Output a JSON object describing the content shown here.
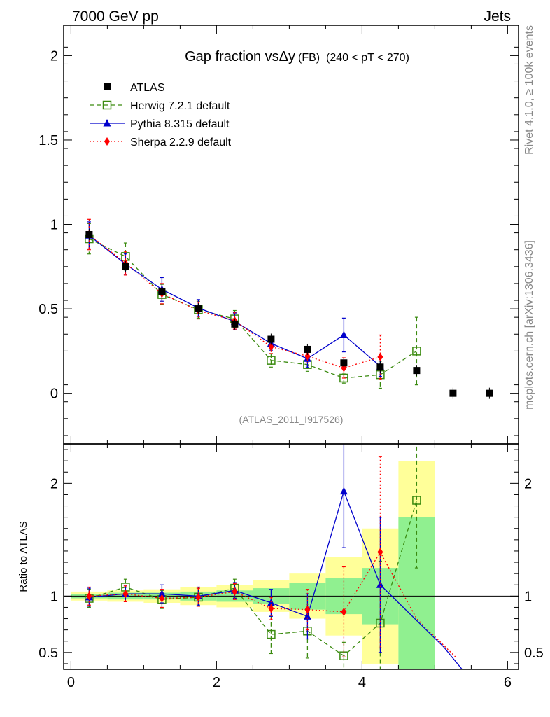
{
  "header": {
    "left": "7000 GeV pp",
    "right": "Jets"
  },
  "side_labels": {
    "top": "Rivet 4.1.0, ≥ 100k events",
    "bottom": "mcplots.cern.ch [arXiv:1306.3436]"
  },
  "watermark": "(ATLAS_2011_I917526)",
  "colors": {
    "atlas": "#000000",
    "herwig": "#3a8a0f",
    "pythia": "#0000cc",
    "sherpa": "#ff0000",
    "band_inner": "#90f090",
    "band_outer": "#ffff99"
  },
  "chart_data": [
    {
      "type": "scatter",
      "title_main": "Gap fraction vsΔy",
      "title_fb": "(FB)",
      "title_range": "(240 < pT < 270)",
      "xlim": [
        -0.1,
        6.15
      ],
      "ylim": [
        -0.3,
        2.18
      ],
      "yticks": [
        0,
        0.5,
        1,
        1.5,
        2
      ],
      "ytick_labels": [
        "0",
        "0.5",
        "1",
        "1.5",
        "2"
      ],
      "legend": [
        "ATLAS",
        "Herwig 7.2.1 default",
        "Pythia 8.315 default",
        "Sherpa 2.2.9 default"
      ],
      "x": [
        0.25,
        0.75,
        1.25,
        1.75,
        2.25,
        2.75,
        3.25,
        3.75,
        4.25,
        4.75,
        5.25,
        5.75
      ],
      "series": [
        {
          "name": "ATLAS",
          "values": [
            0.94,
            0.75,
            0.6,
            0.5,
            0.41,
            0.32,
            0.26,
            0.18,
            0.155,
            0.135,
            0.0,
            0.0
          ]
        },
        {
          "name": "Herwig 7.2.1 default",
          "values": [
            0.915,
            0.81,
            0.585,
            0.495,
            0.44,
            0.195,
            0.17,
            0.09,
            0.11,
            0.25
          ],
          "err": [
            0.09,
            0.08,
            0.06,
            0.05,
            0.05,
            0.04,
            0.04,
            0.03,
            0.08,
            0.2
          ]
        },
        {
          "name": "Pythia 8.315 default",
          "values": [
            0.935,
            0.765,
            0.615,
            0.505,
            0.425,
            0.295,
            0.205,
            0.345,
            0.16
          ],
          "err": [
            0.08,
            0.06,
            0.07,
            0.05,
            0.05,
            0.04,
            0.05,
            0.1,
            0.06
          ]
        },
        {
          "name": "Sherpa 2.2.9 default",
          "values": [
            0.94,
            0.77,
            0.59,
            0.49,
            0.43,
            0.275,
            0.22,
            0.15,
            0.215
          ],
          "err": [
            0.09,
            0.07,
            0.06,
            0.05,
            0.05,
            0.04,
            0.04,
            0.06,
            0.13
          ]
        }
      ]
    },
    {
      "type": "scatter",
      "ylabel": "Ratio to ATLAS",
      "xlim": [
        -0.1,
        6.15
      ],
      "ylim": [
        0.35,
        2.35
      ],
      "yticks": [
        0.5,
        1,
        2
      ],
      "ytick_labels": [
        "0.5",
        "1",
        "2"
      ],
      "xticks": [
        0,
        2,
        4,
        6
      ],
      "xtick_labels": [
        "0",
        "2",
        "4",
        "6"
      ],
      "x": [
        0.25,
        0.75,
        1.25,
        1.75,
        2.25,
        2.75,
        3.25,
        3.75,
        4.25,
        4.75
      ],
      "band_inner": [
        0.02,
        0.03,
        0.03,
        0.04,
        0.05,
        0.07,
        0.12,
        0.16,
        0.25,
        0.7
      ],
      "band_outer": [
        0.04,
        0.05,
        0.06,
        0.08,
        0.1,
        0.14,
        0.2,
        0.35,
        0.6,
        1.2
      ],
      "series": [
        {
          "name": "Herwig 7.2.1 default",
          "values": [
            0.98,
            1.08,
            0.97,
            0.99,
            1.07,
            0.66,
            0.69,
            0.47,
            0.76,
            1.85
          ],
          "err": [
            0.08,
            0.07,
            0.08,
            0.08,
            0.08,
            0.17,
            0.24,
            0.12,
            0.55,
            0.6
          ]
        },
        {
          "name": "Pythia 8.315 default",
          "values": [
            0.99,
            1.02,
            1.02,
            1.0,
            1.05,
            0.94,
            0.82,
            1.93,
            1.1,
            0.55,
            0.33
          ],
          "x": [
            0.25,
            0.75,
            1.25,
            1.75,
            2.25,
            2.75,
            3.25,
            3.75,
            4.25,
            5.12,
            5.4
          ],
          "err": [
            0.08,
            0.07,
            0.08,
            0.08,
            0.07,
            0.12,
            0.2,
            0.5,
            0.6,
            null,
            null
          ]
        },
        {
          "name": "Sherpa 2.2.9 default",
          "values": [
            1.0,
            1.02,
            0.98,
            0.99,
            1.04,
            0.89,
            0.88,
            0.86,
            1.39,
            0.8,
            0.45
          ],
          "x": [
            0.25,
            0.75,
            1.25,
            1.75,
            2.25,
            2.75,
            3.25,
            3.75,
            4.25,
            4.75,
            5.3
          ],
          "err": [
            0.08,
            0.07,
            0.08,
            0.08,
            0.07,
            0.1,
            0.18,
            0.4,
            0.85,
            null,
            null
          ]
        }
      ]
    }
  ]
}
